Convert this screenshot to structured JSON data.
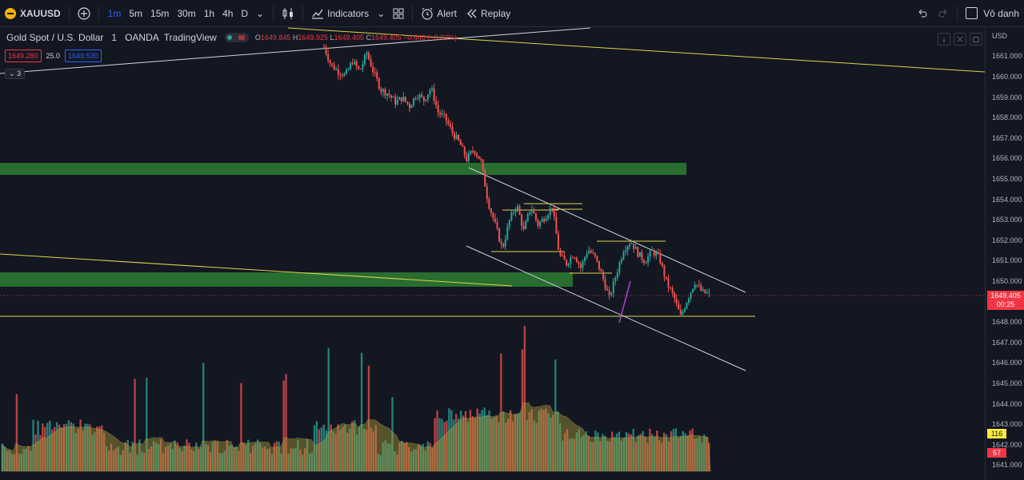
{
  "toolbar": {
    "symbol": "XAUUSD",
    "timeframes": [
      "1m",
      "5m",
      "15m",
      "30m",
      "1h",
      "4h",
      "D"
    ],
    "active_timeframe": "1m",
    "indicators_label": "Indicators",
    "alert_label": "Alert",
    "replay_label": "Replay",
    "layout_name": "Vô danh"
  },
  "legend": {
    "title": "Gold Spot / U.S. Dollar",
    "interval": "1",
    "exchange": "OANDA",
    "provider": "TradingView",
    "open_label": "O",
    "open": "1649.845",
    "high_label": "H",
    "high": "1649.925",
    "low_label": "L",
    "low": "1649.405",
    "close_label": "C",
    "close": "1649.405",
    "change": "−0.440 (−0.03%)",
    "bid": "1649.280",
    "spread": "25.0",
    "ask": "1649.530",
    "collapsed_count": "3"
  },
  "price_axis": {
    "currency": "USD",
    "ticks": [
      "1661.000",
      "1660.000",
      "1659.000",
      "1658.000",
      "1657.000",
      "1656.000",
      "1655.000",
      "1654.000",
      "1653.000",
      "1652.000",
      "1651.000",
      "1650.000",
      "1648.000",
      "1647.000",
      "1646.000",
      "1645.000",
      "1644.000",
      "1643.000",
      "1642.000",
      "1641.000"
    ],
    "last_price": "1649.405",
    "countdown": "00:25",
    "volume_ma_value": "116",
    "volume_value": "57"
  },
  "colors": {
    "background": "#131722",
    "up": "#26a69a",
    "down": "#ef5350",
    "zone": "#2e7d32",
    "trendline": "#e0d34a",
    "channel": "#d1d4dc",
    "accent": "#2962ff"
  },
  "chart_data": {
    "type": "candlestick",
    "instrument": "XAUUSD",
    "price_range": [
      1641,
      1661
    ],
    "close_path": [
      1661.5,
      1660.6,
      1660.3,
      1660.1,
      1660.8,
      1660.3,
      1661.2,
      1660.2,
      1659.4,
      1659.2,
      1658.8,
      1659.0,
      1658.6,
      1659.2,
      1658.9,
      1659.5,
      1658.3,
      1658.0,
      1657.3,
      1656.8,
      1656.0,
      1656.5,
      1655.9,
      1653.9,
      1652.8,
      1651.6,
      1653.0,
      1653.8,
      1652.5,
      1653.7,
      1652.8,
      1653.2,
      1653.7,
      1651.3,
      1650.9,
      1651.4,
      1650.7,
      1651.6,
      1651.2,
      1650.3,
      1649.2,
      1650.4,
      1651.6,
      1652.0,
      1651.4,
      1651.0,
      1651.5,
      1651.2,
      1650.0,
      1649.3,
      1648.3,
      1649.2,
      1650.0,
      1649.5,
      1649.4
    ],
    "horizontal_line": 1648.4,
    "volume_labels": {
      "ma": 116,
      "volume": 57
    }
  }
}
